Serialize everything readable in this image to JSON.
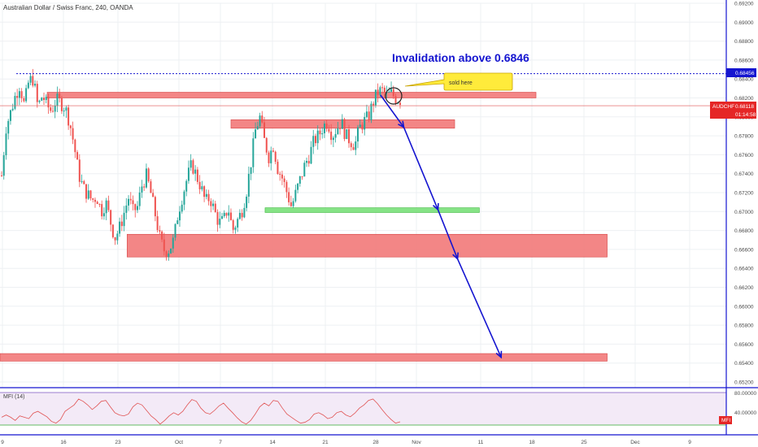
{
  "header": {
    "title": "Australian Dollar / Swiss Franc, 240, OANDA"
  },
  "chart_data": {
    "type": "candlestick",
    "symbol": "AUDCHF",
    "interval": "240",
    "source": "OANDA",
    "ylim": [
      0.652,
      0.692
    ],
    "y_ticks": [
      "0.69200",
      "0.69000",
      "0.68800",
      "0.68600",
      "0.68400",
      "0.68200",
      "0.68000",
      "0.67800",
      "0.67600",
      "0.67400",
      "0.67200",
      "0.67000",
      "0.66800",
      "0.66600",
      "0.66400",
      "0.66200",
      "0.66000",
      "0.65800",
      "0.65600",
      "0.65400",
      "0.65200"
    ],
    "x_ticks": [
      "9",
      "16",
      "23",
      "Oct",
      "7",
      "14",
      "21",
      "28",
      "Nov",
      "11",
      "18",
      "25",
      "Dec",
      "9"
    ],
    "price_path": [
      0.6738,
      0.679,
      0.6805,
      0.6822,
      0.6834,
      0.6812,
      0.6838,
      0.684,
      0.681,
      0.6823,
      0.6812,
      0.6806,
      0.6818,
      0.6815,
      0.681,
      0.6795,
      0.677,
      0.674,
      0.6725,
      0.6718,
      0.6712,
      0.6716,
      0.67,
      0.671,
      0.669,
      0.6672,
      0.6682,
      0.6698,
      0.6715,
      0.67,
      0.6705,
      0.6728,
      0.6738,
      0.6718,
      0.6695,
      0.667,
      0.6658,
      0.666,
      0.667,
      0.67,
      0.6718,
      0.6736,
      0.675,
      0.6738,
      0.6726,
      0.671,
      0.6715,
      0.67,
      0.6688,
      0.669,
      0.6705,
      0.668,
      0.669,
      0.67,
      0.672,
      0.675,
      0.6785,
      0.68,
      0.6775,
      0.6758,
      0.677,
      0.6745,
      0.6735,
      0.672,
      0.6705,
      0.672,
      0.6735,
      0.675,
      0.676,
      0.6775,
      0.678,
      0.679,
      0.6795,
      0.678,
      0.6788,
      0.6795,
      0.678,
      0.6775,
      0.677,
      0.6788,
      0.6795,
      0.68,
      0.6815,
      0.6826,
      0.6828,
      0.6822,
      0.6825,
      0.682,
      0.6818
    ],
    "zones": [
      {
        "from_x": 0.065,
        "to_x": 0.738,
        "top": 0.6826,
        "bottom": 0.682,
        "color": "#f27979"
      },
      {
        "from_x": 0.318,
        "to_x": 0.626,
        "top": 0.6797,
        "bottom": 0.6788,
        "color": "#f27979"
      },
      {
        "from_x": 0.365,
        "to_x": 0.66,
        "top": 0.6704,
        "bottom": 0.6699,
        "color": "#79e079"
      },
      {
        "from_x": 0.175,
        "to_x": 0.836,
        "top": 0.6676,
        "bottom": 0.6652,
        "color": "#f27979"
      },
      {
        "from_x": 0.0,
        "to_x": 0.836,
        "top": 0.655,
        "bottom": 0.6542,
        "color": "#f27979"
      }
    ],
    "invalidation_level": 0.68456,
    "current_price": 0.68118,
    "forecast_path": [
      {
        "x": 0.524,
        "y": 0.6823
      },
      {
        "x": 0.556,
        "y": 0.6789
      },
      {
        "x": 0.603,
        "y": 0.6702
      },
      {
        "x": 0.63,
        "y": 0.665
      },
      {
        "x": 0.69,
        "y": 0.6546
      }
    ],
    "annotations": {
      "headline": "Invalidation above 0.6846",
      "callout": "sold here"
    },
    "badges": {
      "invalidation": "0.68456",
      "symbol": "AUDCHF",
      "price": "0.68118",
      "countdown": "01:14:58"
    },
    "colors": {
      "up": "#26a69a",
      "down": "#ef5350",
      "arrow": "#1515d0",
      "badge": "#e52626"
    },
    "mfi": {
      "label": "MFI (14)",
      "y_ticks": [
        "80.00000",
        "40.00000"
      ],
      "ylim": [
        0,
        100
      ],
      "badge": "MFI",
      "values": [
        35,
        40,
        35,
        28,
        38,
        35,
        32,
        44,
        48,
        42,
        36,
        26,
        22,
        30,
        48,
        55,
        62,
        75,
        70,
        62,
        52,
        60,
        70,
        72,
        58,
        45,
        40,
        38,
        42,
        58,
        66,
        62,
        50,
        38,
        30,
        20,
        28,
        38,
        45,
        40,
        48,
        62,
        74,
        70,
        55,
        45,
        42,
        50,
        60,
        66,
        55,
        45,
        34,
        25,
        20,
        28,
        42,
        58,
        66,
        60,
        72,
        70,
        55,
        42,
        35,
        28,
        22,
        24,
        30,
        42,
        45,
        40,
        32,
        35,
        45,
        48,
        40,
        36,
        44,
        55,
        62,
        72,
        75,
        65,
        52,
        40,
        30,
        22,
        25
      ]
    }
  }
}
